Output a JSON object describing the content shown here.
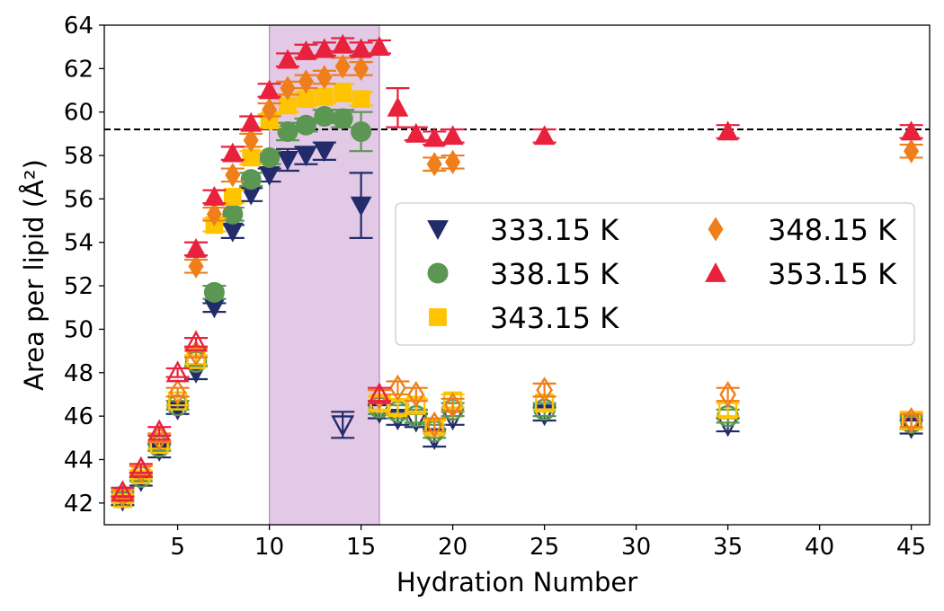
{
  "chart_data": {
    "type": "scatter",
    "xlabel": "Hydration Number",
    "ylabel": "Area per lipid (Å²)",
    "xlim": [
      1,
      46
    ],
    "ylim": [
      41,
      64
    ],
    "xticks": [
      5,
      10,
      15,
      20,
      25,
      30,
      35,
      40,
      45
    ],
    "yticks": [
      42,
      44,
      46,
      48,
      50,
      52,
      54,
      56,
      58,
      60,
      62,
      64
    ],
    "reference_line": {
      "y": 59.2,
      "style": "dashed",
      "color": "#000000"
    },
    "shaded_region": {
      "x": [
        10,
        16
      ],
      "color": "#cfa5d4"
    },
    "legend": {
      "position": "center-right",
      "columns": 2
    },
    "series": [
      {
        "name": "333.15 K",
        "marker": "triangle-down",
        "color": "#232c6b",
        "filled": {
          "x": [
            2,
            3,
            4,
            5,
            6,
            7,
            8,
            9,
            10,
            11,
            12,
            13,
            15
          ],
          "y": [
            42.1,
            43.0,
            44.4,
            46.3,
            48.0,
            51.0,
            54.5,
            56.2,
            57.1,
            57.8,
            58.0,
            58.2,
            55.7
          ],
          "err": [
            0.2,
            0.2,
            0.3,
            0.2,
            0.3,
            0.2,
            0.3,
            0.3,
            0.3,
            0.5,
            0.4,
            0.4,
            1.5
          ]
        },
        "open": {
          "x": [
            14,
            16,
            17,
            18,
            19,
            20,
            25,
            35,
            45
          ],
          "y": [
            45.6,
            46.2,
            45.9,
            45.8,
            45.0,
            45.9,
            46.1,
            45.6,
            45.5
          ],
          "err": [
            0.6,
            0.3,
            0.3,
            0.3,
            0.4,
            0.3,
            0.3,
            0.3,
            0.3
          ]
        }
      },
      {
        "name": "338.15 K",
        "marker": "circle",
        "color": "#5b9652",
        "filled": {
          "x": [
            7,
            8,
            9,
            10,
            11,
            12,
            13,
            14,
            15
          ],
          "y": [
            51.7,
            55.3,
            56.9,
            57.9,
            59.1,
            59.4,
            59.8,
            59.7,
            59.1
          ],
          "err": [
            0.3,
            0.3,
            0.3,
            0.3,
            0.4,
            0.3,
            0.3,
            0.4,
            0.9
          ]
        },
        "open": {
          "x": [
            2,
            3,
            4,
            5,
            6,
            16,
            17,
            18,
            19,
            20,
            25,
            35,
            45
          ],
          "y": [
            42.3,
            43.2,
            44.6,
            46.5,
            48.5,
            46.4,
            46.2,
            46.0,
            45.3,
            46.3,
            46.3,
            46.0,
            45.7
          ],
          "err": [
            0.2,
            0.2,
            0.2,
            0.2,
            0.2,
            0.3,
            0.3,
            0.3,
            0.3,
            0.3,
            0.3,
            0.3,
            0.3
          ]
        }
      },
      {
        "name": "343.15 K",
        "marker": "square",
        "color": "#ffc400",
        "filled": {
          "x": [
            7,
            8,
            9,
            10,
            11,
            12,
            13,
            14,
            15
          ],
          "y": [
            54.8,
            56.1,
            57.9,
            59.6,
            60.3,
            60.6,
            60.7,
            60.9,
            60.6
          ],
          "err": [
            0.3,
            0.3,
            0.3,
            0.3,
            0.3,
            0.3,
            0.3,
            0.4,
            0.3
          ]
        },
        "open": {
          "x": [
            2,
            3,
            4,
            5,
            6,
            16,
            17,
            18,
            19,
            20,
            25,
            35,
            45
          ],
          "y": [
            42.2,
            43.3,
            44.7,
            46.7,
            48.6,
            46.6,
            46.4,
            46.5,
            45.5,
            46.7,
            46.6,
            46.3,
            45.8
          ],
          "err": [
            0.2,
            0.2,
            0.2,
            0.2,
            0.2,
            0.3,
            0.3,
            0.3,
            0.3,
            0.3,
            0.3,
            0.3,
            0.4
          ]
        }
      },
      {
        "name": "348.15 K",
        "marker": "diamond",
        "color": "#ee7f1a",
        "filled": {
          "x": [
            6,
            7,
            8,
            9,
            10,
            11,
            12,
            13,
            14,
            15,
            19,
            20,
            45
          ],
          "y": [
            52.9,
            55.3,
            57.1,
            58.7,
            60.1,
            61.1,
            61.4,
            61.6,
            62.1,
            62.0,
            57.6,
            57.7,
            58.2
          ],
          "err": [
            0.3,
            0.3,
            0.3,
            0.3,
            0.3,
            0.3,
            0.3,
            0.3,
            0.4,
            0.3,
            0.3,
            0.3,
            0.3
          ]
        },
        "open": {
          "x": [
            2,
            3,
            4,
            5,
            6,
            16,
            17,
            18,
            19,
            20,
            25,
            35,
            45
          ],
          "y": [
            42.4,
            43.5,
            45.0,
            47.1,
            48.9,
            46.9,
            47.3,
            47.0,
            45.6,
            46.5,
            47.2,
            47.0,
            45.8
          ],
          "err": [
            0.2,
            0.2,
            0.2,
            0.2,
            0.2,
            0.3,
            0.3,
            0.3,
            0.3,
            0.3,
            0.3,
            0.3,
            0.3
          ]
        }
      },
      {
        "name": "353.15 K",
        "marker": "triangle-up",
        "color": "#e8213d",
        "filled": {
          "x": [
            6,
            7,
            8,
            9,
            10,
            11,
            12,
            13,
            14,
            15,
            16,
            17,
            18,
            19,
            20,
            25,
            35,
            45
          ],
          "y": [
            53.7,
            56.1,
            58.1,
            59.5,
            61.0,
            62.4,
            62.8,
            62.9,
            63.1,
            62.9,
            63.0,
            60.2,
            59.0,
            58.8,
            58.9,
            58.9,
            59.1,
            59.1
          ],
          "err": [
            0.3,
            0.3,
            0.3,
            0.3,
            0.3,
            0.3,
            0.3,
            0.3,
            0.3,
            0.3,
            0.3,
            0.9,
            0.3,
            0.3,
            0.3,
            0.3,
            0.3,
            0.3
          ]
        },
        "open": {
          "x": [
            2,
            3,
            4,
            5,
            6,
            16
          ],
          "y": [
            42.5,
            43.6,
            45.3,
            48.0,
            49.4,
            47.0
          ],
          "err": [
            0.2,
            0.2,
            0.2,
            0.2,
            0.2,
            0.3
          ]
        }
      }
    ]
  }
}
